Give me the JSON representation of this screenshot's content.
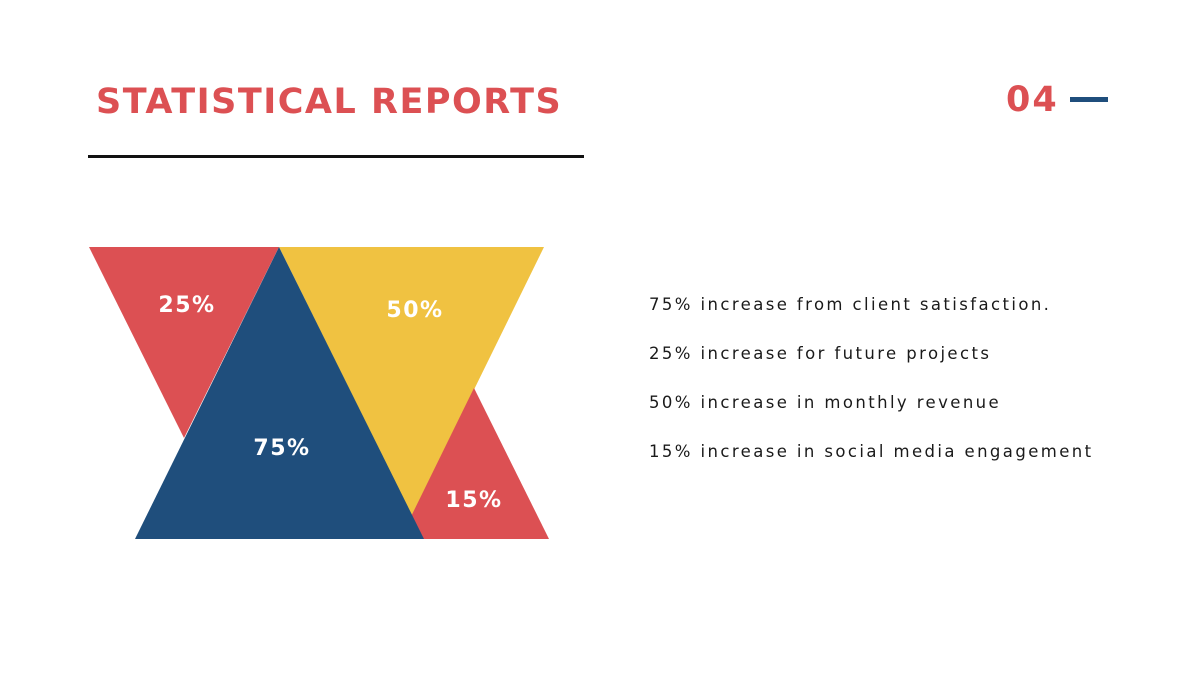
{
  "slide": {
    "title": "STATISTICAL REPORTS",
    "page_number": "04"
  },
  "colors": {
    "red": "#dc5053",
    "yellow": "#f0c241",
    "blue": "#1f4e7c",
    "text": "#1a1a1a"
  },
  "triangles": {
    "red_top": "25%",
    "yellow_top": "50%",
    "blue": "75%",
    "red_bottom": "15%"
  },
  "stats": [
    "75% increase from client satisfaction.",
    "25% increase for future projects",
    "50% increase in monthly revenue",
    "15% increase in social media engagement"
  ]
}
